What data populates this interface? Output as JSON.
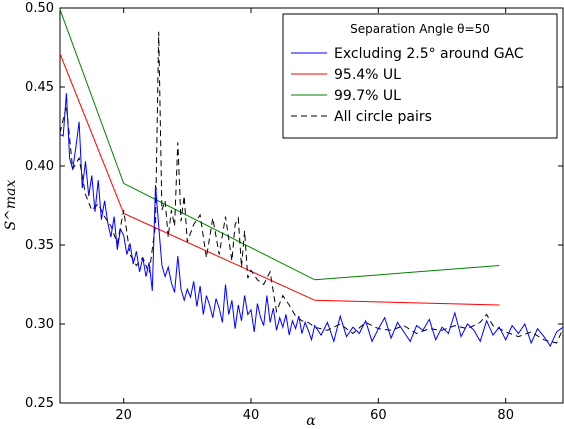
{
  "chart_data": {
    "type": "line",
    "title": "",
    "xlabel": "α",
    "ylabel": "S^max",
    "xlim": [
      10,
      89
    ],
    "ylim": [
      0.25,
      0.5
    ],
    "xticks": [
      20,
      40,
      60,
      80
    ],
    "yticks": [
      0.25,
      0.3,
      0.35,
      0.4,
      0.45,
      0.5
    ],
    "ytick_labels": [
      "0.25",
      "0.30",
      "0.35",
      "0.40",
      "0.45",
      "0.50"
    ],
    "grid": false,
    "legend": {
      "title": "Separation Angle θ=50",
      "placement": "top-right",
      "entries": [
        {
          "label": "Excluding 2.5° around GAC",
          "color": "#0000ff",
          "dash": "solid"
        },
        {
          "label": "95.4% UL",
          "color": "#ff0000",
          "dash": "solid"
        },
        {
          "label": "99.7% UL",
          "color": "#008000",
          "dash": "solid"
        },
        {
          "label": "All circle pairs",
          "color": "#000000",
          "dash": "dashed"
        }
      ]
    },
    "series": [
      {
        "name": "99.7% UL",
        "color": "#008000",
        "dash": "solid",
        "x": [
          10,
          20,
          50,
          79
        ],
        "y": [
          0.499,
          0.389,
          0.328,
          0.337
        ]
      },
      {
        "name": "95.4% UL",
        "color": "#ff0000",
        "dash": "solid",
        "x": [
          10,
          20,
          50,
          79
        ],
        "y": [
          0.471,
          0.37,
          0.315,
          0.312
        ]
      },
      {
        "name": "All circle pairs",
        "color": "#000000",
        "dash": "dashed",
        "x": [
          10,
          11,
          12,
          13,
          14,
          15,
          16,
          17,
          18,
          19,
          20,
          21,
          22,
          23,
          24,
          25,
          25.5,
          26,
          26.5,
          27,
          27.5,
          28,
          28.5,
          29,
          29.5,
          30,
          31,
          32,
          33,
          34,
          35,
          36,
          37,
          37.5,
          38,
          38.5,
          39,
          39.5,
          40,
          41,
          42,
          43,
          44,
          45,
          46,
          47,
          48,
          49,
          50,
          52,
          54,
          56,
          58,
          60,
          62,
          64,
          66,
          68,
          70,
          72,
          74,
          76,
          77,
          78,
          80,
          82,
          84,
          86,
          88,
          89
        ],
        "y": [
          0.421,
          0.438,
          0.398,
          0.405,
          0.382,
          0.372,
          0.376,
          0.368,
          0.362,
          0.351,
          0.372,
          0.344,
          0.337,
          0.342,
          0.332,
          0.363,
          0.485,
          0.372,
          0.378,
          0.355,
          0.372,
          0.362,
          0.415,
          0.365,
          0.381,
          0.352,
          0.363,
          0.369,
          0.342,
          0.367,
          0.344,
          0.368,
          0.34,
          0.363,
          0.367,
          0.336,
          0.359,
          0.329,
          0.334,
          0.328,
          0.325,
          0.333,
          0.308,
          0.318,
          0.312,
          0.305,
          0.302,
          0.301,
          0.298,
          0.296,
          0.3,
          0.294,
          0.301,
          0.297,
          0.296,
          0.299,
          0.294,
          0.297,
          0.296,
          0.299,
          0.297,
          0.301,
          0.306,
          0.299,
          0.295,
          0.292,
          0.295,
          0.29,
          0.288,
          0.297
        ]
      },
      {
        "name": "Excluding 2.5° around GAC",
        "color": "#0000ff",
        "dash": "solid",
        "x": [
          10,
          10.5,
          11,
          11.5,
          12,
          12.5,
          13,
          13.5,
          14,
          14.5,
          15,
          15.5,
          16,
          16.5,
          17,
          17.5,
          18,
          18.5,
          19,
          19.5,
          20,
          20.5,
          21,
          21.5,
          22,
          22.5,
          23,
          23.5,
          24,
          24.5,
          25,
          25.5,
          26,
          26.5,
          27,
          27.5,
          28,
          28.5,
          29,
          29.5,
          30,
          30.5,
          31,
          31.5,
          32,
          32.5,
          33,
          33.5,
          34,
          34.5,
          35,
          35.5,
          36,
          36.5,
          37,
          37.5,
          38,
          38.5,
          39,
          39.5,
          40,
          40.5,
          41,
          41.5,
          42,
          42.5,
          43,
          43.5,
          44,
          44.5,
          45,
          45.5,
          46,
          46.5,
          47,
          47.5,
          48,
          48.5,
          49,
          49.5,
          50,
          51,
          52,
          53,
          54,
          55,
          56,
          57,
          58,
          59,
          60,
          61,
          62,
          63,
          64,
          65,
          66,
          67,
          68,
          69,
          70,
          71,
          72,
          73,
          74,
          75,
          76,
          77,
          78,
          79,
          80,
          81,
          82,
          83,
          84,
          85,
          86,
          87,
          88,
          89
        ],
        "y": [
          0.42,
          0.419,
          0.446,
          0.405,
          0.398,
          0.412,
          0.428,
          0.386,
          0.403,
          0.381,
          0.394,
          0.371,
          0.391,
          0.366,
          0.378,
          0.364,
          0.355,
          0.368,
          0.347,
          0.36,
          0.356,
          0.344,
          0.351,
          0.338,
          0.346,
          0.333,
          0.342,
          0.33,
          0.339,
          0.321,
          0.388,
          0.362,
          0.337,
          0.33,
          0.336,
          0.326,
          0.32,
          0.343,
          0.322,
          0.315,
          0.322,
          0.317,
          0.327,
          0.311,
          0.324,
          0.306,
          0.318,
          0.312,
          0.304,
          0.316,
          0.31,
          0.301,
          0.325,
          0.306,
          0.315,
          0.297,
          0.312,
          0.302,
          0.318,
          0.306,
          0.309,
          0.295,
          0.313,
          0.304,
          0.299,
          0.318,
          0.301,
          0.31,
          0.296,
          0.304,
          0.298,
          0.306,
          0.293,
          0.302,
          0.297,
          0.305,
          0.294,
          0.301,
          0.296,
          0.29,
          0.299,
          0.293,
          0.301,
          0.289,
          0.305,
          0.292,
          0.298,
          0.294,
          0.302,
          0.289,
          0.297,
          0.304,
          0.291,
          0.301,
          0.295,
          0.289,
          0.299,
          0.296,
          0.303,
          0.29,
          0.298,
          0.294,
          0.307,
          0.292,
          0.3,
          0.296,
          0.289,
          0.302,
          0.293,
          0.298,
          0.29,
          0.299,
          0.294,
          0.3,
          0.288,
          0.297,
          0.292,
          0.286,
          0.295,
          0.298
        ]
      }
    ]
  }
}
